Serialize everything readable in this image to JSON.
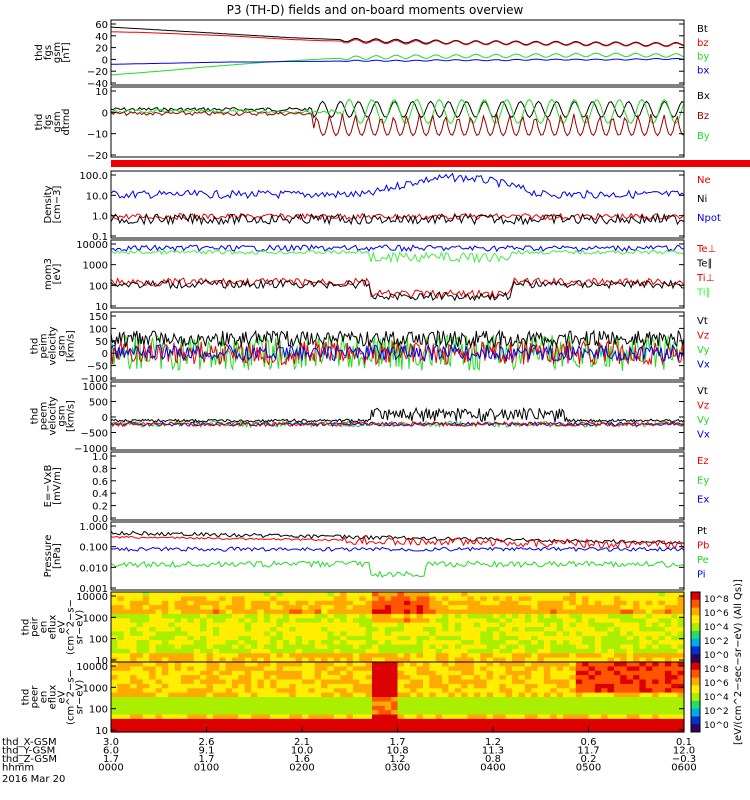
{
  "title": "P3 (TH-D) fields and on-board moments overview",
  "colors": {
    "black": "#000000",
    "red": "#ee0000",
    "green": "#22dd22",
    "blue": "#0000ee",
    "darkred": "#990000",
    "lime": "#44ee44"
  },
  "chart_data": [
    {
      "type": "line",
      "panel": "fgs",
      "ylabel": [
        "thd",
        "fgs",
        "gsm",
        "[nT]"
      ],
      "yticks": [
        "60",
        "40",
        "20",
        "0",
        "−20",
        "−40"
      ],
      "legend": [
        {
          "name": "Bt",
          "color": "black"
        },
        {
          "name": "bz",
          "color": "red"
        },
        {
          "name": "by",
          "color": "green"
        },
        {
          "name": "bx",
          "color": "blue"
        }
      ],
      "series": [
        {
          "name": "Bt",
          "values": [
            53,
            50,
            47,
            44,
            41,
            38,
            35,
            33,
            31,
            30,
            29,
            28,
            27,
            27,
            26,
            26,
            25,
            25,
            24,
            24
          ]
        },
        {
          "name": "bz",
          "values": [
            45,
            44,
            42,
            40,
            38,
            35,
            32,
            30,
            29,
            28,
            27,
            27,
            26,
            26,
            25,
            25,
            24,
            24,
            23,
            23
          ]
        },
        {
          "name": "by",
          "values": [
            -28,
            -24,
            -20,
            -15,
            -11,
            -7,
            -4,
            -1,
            1,
            2,
            3,
            3,
            4,
            4,
            5,
            5,
            6,
            6,
            5,
            5
          ]
        },
        {
          "name": "bx",
          "values": [
            -10,
            -9,
            -8,
            -7,
            -6,
            -6,
            -5,
            -5,
            -4,
            -4,
            -4,
            -3,
            -3,
            -3,
            -2,
            -2,
            -2,
            -2,
            -1,
            -1
          ]
        }
      ]
    },
    {
      "type": "line",
      "panel": "fgs-detrend",
      "ylabel": [
        "thd",
        "fgs",
        "gsm",
        "dtrnd"
      ],
      "yticks": [
        "10",
        "0",
        "−10",
        "−20"
      ],
      "legend": [
        {
          "name": "Bx",
          "color": "black"
        },
        {
          "name": "Bz",
          "color": "darkred"
        },
        {
          "name": "By",
          "color": "green"
        }
      ]
    },
    {
      "type": "line",
      "panel": "density",
      "ylabel": [
        "Density",
        "[cm−3]"
      ],
      "yticks": [
        "100.0",
        "10.0",
        "1.0",
        "0.1"
      ],
      "legend": [
        {
          "name": "Ne",
          "color": "red"
        },
        {
          "name": "Ni",
          "color": "black"
        },
        {
          "name": "Npot",
          "color": "blue"
        }
      ]
    },
    {
      "type": "line",
      "panel": "temperature",
      "ylabel": [
        "mom3",
        "[eV]"
      ],
      "yticks": [
        "10000",
        "1000",
        "100",
        "10"
      ],
      "legend": [
        {
          "name": "Te⊥",
          "color": "red"
        },
        {
          "name": "Te∥",
          "color": "black"
        },
        {
          "name": "Ti⊥",
          "color": "red"
        },
        {
          "name": "Ti∥",
          "color": "lime"
        }
      ]
    },
    {
      "type": "line",
      "panel": "peim-velocity",
      "ylabel": [
        "thd",
        "peim",
        "velocity",
        "gsm",
        "[km/s]"
      ],
      "yticks": [
        "150",
        "100",
        "50",
        "0",
        "−50",
        "−100"
      ],
      "legend": [
        {
          "name": "Vt",
          "color": "black"
        },
        {
          "name": "Vz",
          "color": "red"
        },
        {
          "name": "Vy",
          "color": "green"
        },
        {
          "name": "Vx",
          "color": "blue"
        }
      ]
    },
    {
      "type": "line",
      "panel": "peem-velocity",
      "ylabel": [
        "thd",
        "peem",
        "velocity",
        "gsm",
        "[km/s]"
      ],
      "yticks": [
        "1000",
        "500",
        "0",
        "−500",
        "−1000"
      ],
      "legend": [
        {
          "name": "Vt",
          "color": "black"
        },
        {
          "name": "Vz",
          "color": "red"
        },
        {
          "name": "Vy",
          "color": "green"
        },
        {
          "name": "Vx",
          "color": "blue"
        }
      ]
    },
    {
      "type": "line",
      "panel": "efield",
      "ylabel": [
        "E=−VxB",
        "[mV/m]"
      ],
      "yticks": [
        "1.0",
        "0.8",
        "0.6",
        "0.4",
        "0.2",
        "0.0"
      ],
      "legend": [
        {
          "name": "Ez",
          "color": "red"
        },
        {
          "name": "Ey",
          "color": "green"
        },
        {
          "name": "Ex",
          "color": "blue"
        }
      ]
    },
    {
      "type": "line",
      "panel": "pressure",
      "ylabel": [
        "Pressure",
        "[nPa]"
      ],
      "yticks": [
        "1.000",
        "0.100",
        "0.010",
        "0.001"
      ],
      "legend": [
        {
          "name": "Pt",
          "color": "black"
        },
        {
          "name": "Pb",
          "color": "red"
        },
        {
          "name": "Pe",
          "color": "green"
        },
        {
          "name": "Pi",
          "color": "blue"
        }
      ]
    },
    {
      "type": "heatmap",
      "panel": "peir",
      "ylabel": [
        "thd",
        "peir",
        "en",
        "eflux",
        "eV",
        "(cm^2−s−",
        "sr−eV)"
      ],
      "yticks": [
        "10000",
        "1000",
        "100",
        "10"
      ]
    },
    {
      "type": "heatmap",
      "panel": "peer",
      "ylabel": [
        "thd",
        "peer",
        "en",
        "eflux",
        "eV",
        "(cm^2−s−",
        "sr−eV)"
      ],
      "yticks": [
        "10000",
        "1000",
        "100",
        "10"
      ]
    }
  ],
  "colorbar": {
    "label": "[eV/(cm^2−sec−sr−eV) (All Qs)]",
    "ticks": [
      "10^8",
      "10^6",
      "10^4",
      "10^2",
      "10^0"
    ]
  },
  "xaxis": {
    "rows": [
      {
        "label": "thd_X-GSM",
        "values": [
          "3.0",
          "2.6",
          "2.1",
          "1.7",
          "1.2",
          "0.6",
          "0.1"
        ]
      },
      {
        "label": "thd_Y-GSM",
        "values": [
          "6.0",
          "9.1",
          "10.0",
          "10.8",
          "11.3",
          "11.7",
          "12.0"
        ]
      },
      {
        "label": "thd_Z-GSM",
        "values": [
          "1.7",
          "1.7",
          "1.6",
          "1.2",
          "0.8",
          "0.2",
          "−0.3"
        ]
      },
      {
        "label": "hhmm",
        "values": [
          "0000",
          "0100",
          "0200",
          "0300",
          "0400",
          "0500",
          "0600"
        ]
      }
    ],
    "date": "2016 Mar 20"
  }
}
